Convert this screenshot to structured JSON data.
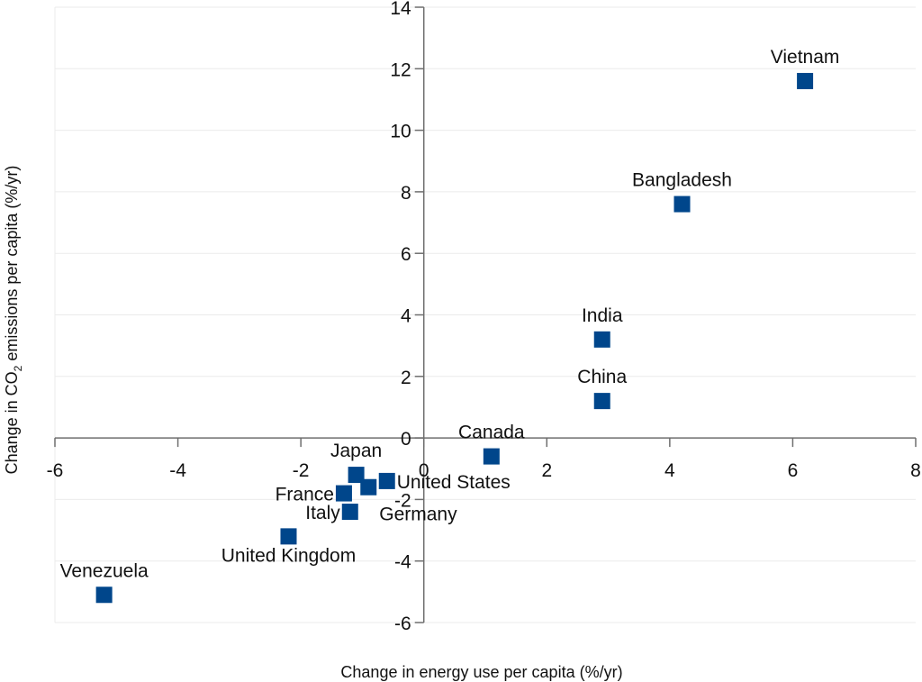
{
  "chart_data": {
    "type": "scatter",
    "title": "",
    "xlabel": "Change in energy use per capita (%/yr)",
    "ylabel_parts": [
      "Change in CO",
      "2",
      " emissions per capita (%/yr)"
    ],
    "ylabel": "Change in CO2 emissions per capita (%/yr)",
    "xlim": [
      -6,
      8
    ],
    "ylim": [
      -6,
      14
    ],
    "xticks": [
      -6,
      -4,
      -2,
      0,
      2,
      4,
      6,
      8
    ],
    "yticks": [
      -6,
      -4,
      -2,
      0,
      2,
      4,
      6,
      8,
      10,
      12,
      14
    ],
    "grid": "horizontal",
    "marker": "square",
    "marker_color": "#00468b",
    "points": [
      {
        "label": "Vietnam",
        "x": 6.2,
        "y": 11.6,
        "label_pos": "above"
      },
      {
        "label": "Bangladesh",
        "x": 4.2,
        "y": 7.6,
        "label_pos": "above"
      },
      {
        "label": "India",
        "x": 2.9,
        "y": 3.2,
        "label_pos": "above"
      },
      {
        "label": "China",
        "x": 2.9,
        "y": 1.2,
        "label_pos": "above"
      },
      {
        "label": "Canada",
        "x": 1.1,
        "y": -0.6,
        "label_pos": "above"
      },
      {
        "label": "Japan",
        "x": -1.1,
        "y": -1.2,
        "label_pos": "above"
      },
      {
        "label": "United States",
        "x": -0.6,
        "y": -1.4,
        "label_pos": "right"
      },
      {
        "label": "Germany",
        "x": -0.9,
        "y": -1.6,
        "label_pos": "below-right"
      },
      {
        "label": "France",
        "x": -1.3,
        "y": -1.8,
        "label_pos": "left"
      },
      {
        "label": "Italy",
        "x": -1.2,
        "y": -2.4,
        "label_pos": "left"
      },
      {
        "label": "United Kingdom",
        "x": -2.2,
        "y": -3.2,
        "label_pos": "below"
      },
      {
        "label": "Venezuela",
        "x": -5.2,
        "y": -5.1,
        "label_pos": "above"
      }
    ]
  }
}
